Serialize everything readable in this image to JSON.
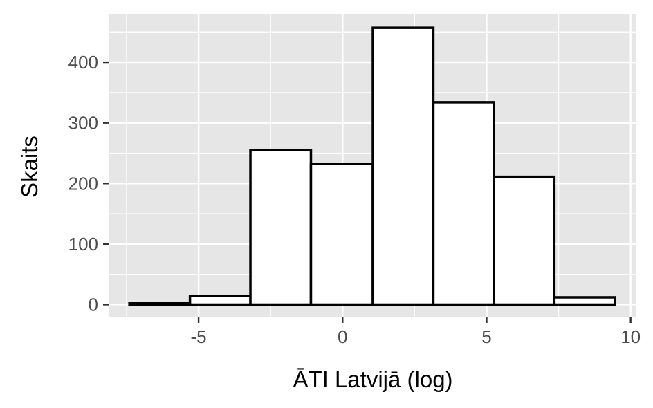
{
  "chart_data": {
    "type": "bar",
    "subtype": "histogram",
    "title": "",
    "xlabel": "ĀTI Latvijā (log)",
    "ylabel": "Skaits",
    "xlim": [
      -8.1,
      10.2
    ],
    "ylim": [
      -20,
      480
    ],
    "x_ticks": [
      -5,
      0,
      5,
      10
    ],
    "x_tick_labels": [
      "-5",
      "0",
      "5",
      "10"
    ],
    "y_ticks": [
      0,
      100,
      200,
      300,
      400
    ],
    "y_tick_labels": [
      "0",
      "100",
      "200",
      "300",
      "400"
    ],
    "bins": [
      {
        "x0": -7.4,
        "x1": -5.3,
        "count": 3
      },
      {
        "x0": -5.3,
        "x1": -3.2,
        "count": 14
      },
      {
        "x0": -3.2,
        "x1": -1.1,
        "count": 255
      },
      {
        "x0": -1.1,
        "x1": 1.05,
        "count": 232
      },
      {
        "x0": 1.05,
        "x1": 3.15,
        "count": 457
      },
      {
        "x0": 3.15,
        "x1": 5.25,
        "count": 334
      },
      {
        "x0": 5.25,
        "x1": 7.35,
        "count": 211
      },
      {
        "x0": 7.35,
        "x1": 9.45,
        "count": 12
      }
    ],
    "grid": true,
    "colors": {
      "panel_background": "#e6e6e6",
      "grid_line": "#ffffff",
      "bar_fill": "#ffffff",
      "bar_outline": "#000000",
      "tick_text": "#4d4d4d"
    }
  }
}
